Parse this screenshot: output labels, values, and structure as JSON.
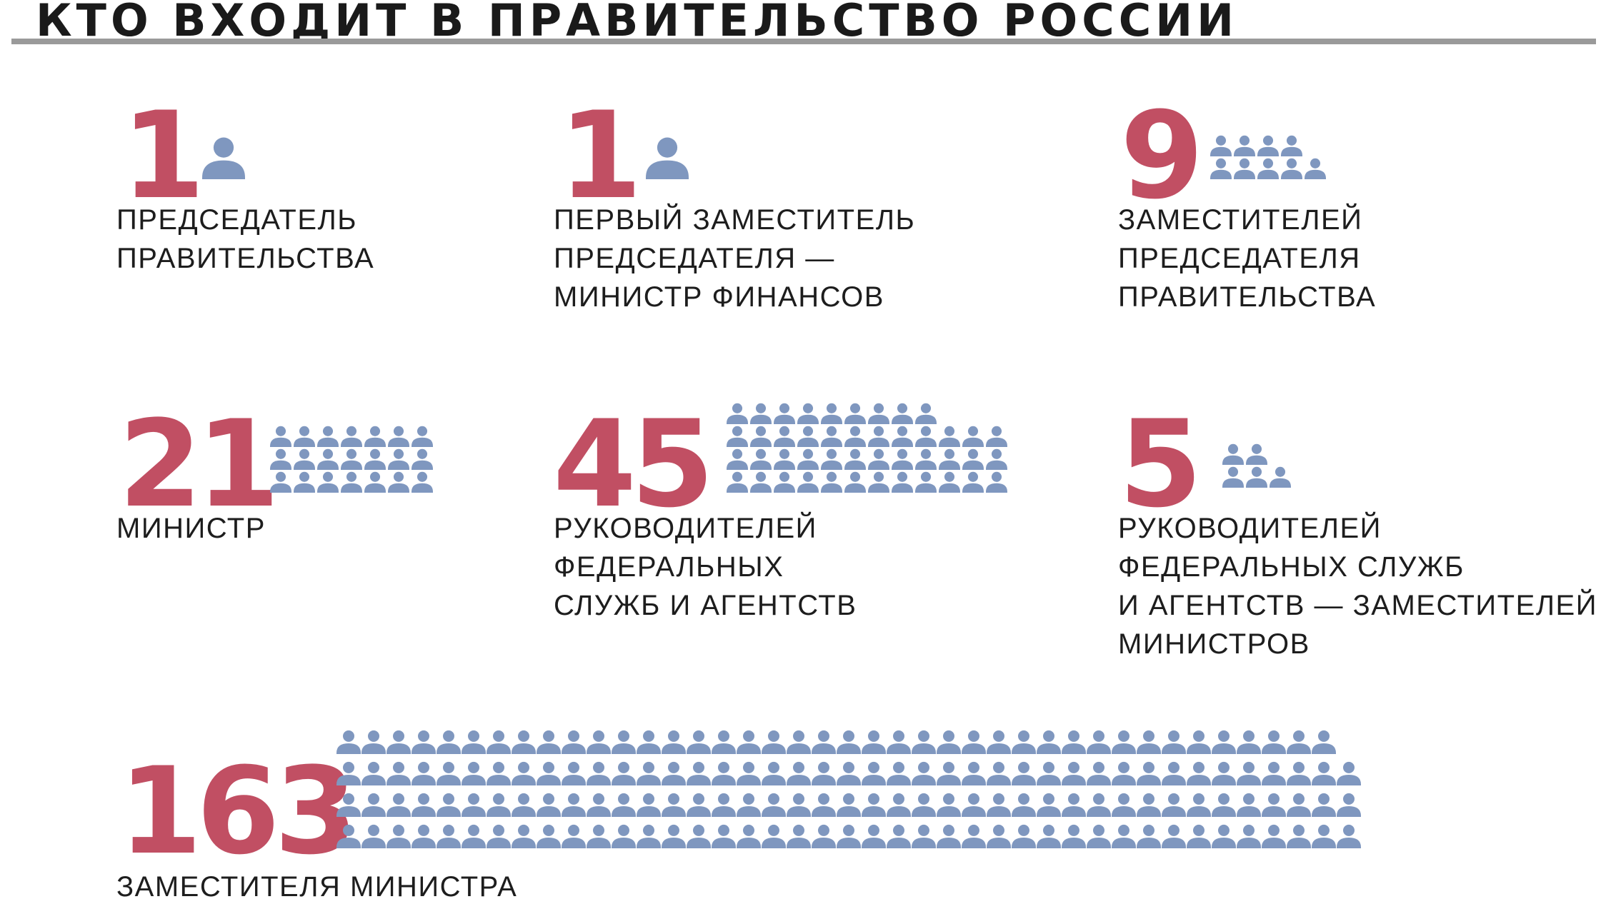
{
  "title": "КТО ВХОДИТ В ПРАВИТЕЛЬСТВО РОССИИ",
  "colors": {
    "number": "#c14f63",
    "icon": "#7f97bf",
    "text": "#1d1d1d",
    "rule": "#9a9a9a"
  },
  "icon": "person-icon",
  "chart_data": {
    "type": "pictogram",
    "title": "КТО ВХОДИТ В ПРАВИТЕЛЬСТВО РОССИИ",
    "items": [
      {
        "value": 1,
        "number": "1",
        "label": "ПРЕДСЕДАТЕЛЬ\nПРАВИТЕЛЬСТВА"
      },
      {
        "value": 1,
        "number": "1",
        "label": "ПЕРВЫЙ ЗАМЕСТИТЕЛЬ\nПРЕДСЕДАТЕЛЯ —\nМИНИСТР ФИНАНСОВ"
      },
      {
        "value": 9,
        "number": "9",
        "label": "ЗАМЕСТИТЕЛЕЙ\nПРЕДСЕДАТЕЛЯ\nПРАВИТЕЛЬСТВА"
      },
      {
        "value": 21,
        "number": "21",
        "label": "МИНИСТР"
      },
      {
        "value": 45,
        "number": "45",
        "label": "РУКОВОДИТЕЛЕЙ\nФЕДЕРАЛЬНЫХ\nСЛУЖБ И АГЕНТСТВ"
      },
      {
        "value": 5,
        "number": "5",
        "label": "РУКОВОДИТЕЛЕЙ\nФЕДЕРАЛЬНЫХ СЛУЖБ\nИ АГЕНТСТВ — ЗАМЕСТИТЕЛЕЙ\nМИНИСТРОВ"
      },
      {
        "value": 163,
        "number": "163",
        "label": "ЗАМЕСТИТЕЛЯ МИНИСТРА"
      }
    ]
  }
}
